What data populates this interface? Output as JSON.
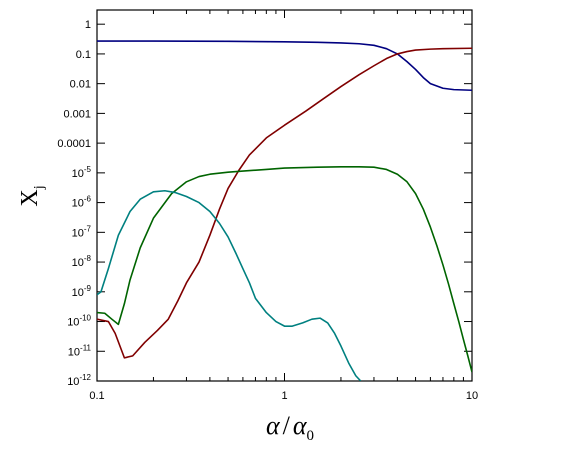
{
  "chart_data": {
    "type": "line",
    "x_scale": "log",
    "y_scale": "log",
    "xlim": [
      0.1,
      10
    ],
    "ylim": [
      1e-12,
      3
    ],
    "xlabel": "α / α₀",
    "xlabel_main": "α",
    "xlabel_slash": "/",
    "xlabel_sub_base": "α",
    "xlabel_sub": "0",
    "ylabel": "Xⱼ",
    "ylabel_main": "X",
    "ylabel_sub": "j",
    "grid": false,
    "x_ticks": [
      {
        "value": 0.1,
        "label": "0.1"
      },
      {
        "value": 1,
        "label": "1"
      },
      {
        "value": 10,
        "label": "10"
      }
    ],
    "y_ticks": [
      {
        "value": 1,
        "label": "1"
      },
      {
        "value": 0.1,
        "label": "0.1"
      },
      {
        "value": 0.01,
        "label": "0.01"
      },
      {
        "value": 0.001,
        "label": "0.001"
      },
      {
        "value": 0.0001,
        "label": "0.0001"
      },
      {
        "value": 1e-05,
        "base": "10",
        "exp": "-5"
      },
      {
        "value": 1e-06,
        "base": "10",
        "exp": "-6"
      },
      {
        "value": 1e-07,
        "base": "10",
        "exp": "-7"
      },
      {
        "value": 1e-08,
        "base": "10",
        "exp": "-8"
      },
      {
        "value": 1e-09,
        "base": "10",
        "exp": "-9"
      },
      {
        "value": 1e-10,
        "base": "10",
        "exp": "-10"
      },
      {
        "value": 1e-11,
        "base": "10",
        "exp": "-11"
      },
      {
        "value": 1e-12,
        "base": "10",
        "exp": "-12"
      }
    ],
    "series": [
      {
        "color": "#000080",
        "points": [
          [
            0.1,
            0.27
          ],
          [
            0.2,
            0.27
          ],
          [
            0.5,
            0.265
          ],
          [
            1.0,
            0.255
          ],
          [
            1.5,
            0.245
          ],
          [
            2.0,
            0.235
          ],
          [
            2.5,
            0.22
          ],
          [
            3.0,
            0.195
          ],
          [
            3.5,
            0.15
          ],
          [
            4.0,
            0.1
          ],
          [
            4.5,
            0.055
          ],
          [
            5.0,
            0.03
          ],
          [
            5.5,
            0.016
          ],
          [
            6.0,
            0.01
          ],
          [
            7.0,
            0.007
          ],
          [
            8.0,
            0.0063
          ],
          [
            10.0,
            0.006
          ]
        ]
      },
      {
        "color": "#800000",
        "points": [
          [
            0.1,
            1.2e-10
          ],
          [
            0.115,
            1e-10
          ],
          [
            0.125,
            4e-11
          ],
          [
            0.14,
            6e-12
          ],
          [
            0.155,
            7e-12
          ],
          [
            0.18,
            2e-11
          ],
          [
            0.21,
            5e-11
          ],
          [
            0.24,
            1.2e-10
          ],
          [
            0.27,
            5e-10
          ],
          [
            0.3,
            2e-09
          ],
          [
            0.35,
            1e-08
          ],
          [
            0.4,
            8e-08
          ],
          [
            0.45,
            6e-07
          ],
          [
            0.5,
            3e-06
          ],
          [
            0.57,
            1.2e-05
          ],
          [
            0.65,
            4e-05
          ],
          [
            0.8,
            0.00015
          ],
          [
            1.0,
            0.0004
          ],
          [
            1.3,
            0.0012
          ],
          [
            1.6,
            0.003
          ],
          [
            2.0,
            0.008
          ],
          [
            2.5,
            0.02
          ],
          [
            3.0,
            0.04
          ],
          [
            3.5,
            0.07
          ],
          [
            4.0,
            0.1
          ],
          [
            4.5,
            0.12
          ],
          [
            5.0,
            0.135
          ],
          [
            6.0,
            0.145
          ],
          [
            7.0,
            0.15
          ],
          [
            10.0,
            0.155
          ]
        ]
      },
      {
        "color": "#006400",
        "points": [
          [
            0.1,
            2e-10
          ],
          [
            0.11,
            1.9e-10
          ],
          [
            0.12,
            1.2e-10
          ],
          [
            0.13,
            8e-11
          ],
          [
            0.14,
            4e-10
          ],
          [
            0.15,
            2.5e-09
          ],
          [
            0.17,
            3e-08
          ],
          [
            0.2,
            3e-07
          ],
          [
            0.25,
            2e-06
          ],
          [
            0.3,
            5e-06
          ],
          [
            0.35,
            7.5e-06
          ],
          [
            0.4,
            9e-06
          ],
          [
            0.5,
            1.05e-05
          ],
          [
            0.6,
            1.15e-05
          ],
          [
            0.8,
            1.3e-05
          ],
          [
            1.0,
            1.45e-05
          ],
          [
            1.5,
            1.55e-05
          ],
          [
            2.0,
            1.6e-05
          ],
          [
            2.5,
            1.6e-05
          ],
          [
            3.0,
            1.55e-05
          ],
          [
            3.5,
            1.3e-05
          ],
          [
            4.0,
            9e-06
          ],
          [
            4.5,
            5e-06
          ],
          [
            5.0,
            2e-06
          ],
          [
            5.5,
            6e-07
          ],
          [
            6.0,
            1.5e-07
          ],
          [
            6.5,
            3.5e-08
          ],
          [
            7.0,
            8e-09
          ],
          [
            7.5,
            1.8e-09
          ],
          [
            8.0,
            4e-10
          ],
          [
            8.5,
            1e-10
          ],
          [
            9.0,
            2.5e-11
          ],
          [
            9.5,
            7e-12
          ],
          [
            10.0,
            2e-12
          ]
        ]
      },
      {
        "color": "#008080",
        "points": [
          [
            0.1,
            8e-10
          ],
          [
            0.105,
            1e-09
          ],
          [
            0.115,
            6e-09
          ],
          [
            0.13,
            8e-08
          ],
          [
            0.15,
            5e-07
          ],
          [
            0.17,
            1.3e-06
          ],
          [
            0.2,
            2.3e-06
          ],
          [
            0.23,
            2.5e-06
          ],
          [
            0.26,
            2.2e-06
          ],
          [
            0.3,
            1.6e-06
          ],
          [
            0.35,
            1e-06
          ],
          [
            0.4,
            5e-07
          ],
          [
            0.45,
            2e-07
          ],
          [
            0.5,
            7e-08
          ],
          [
            0.55,
            2e-08
          ],
          [
            0.6,
            6e-09
          ],
          [
            0.65,
            2e-09
          ],
          [
            0.7,
            6e-10
          ],
          [
            0.8,
            2e-10
          ],
          [
            0.9,
            1e-10
          ],
          [
            1.0,
            7e-11
          ],
          [
            1.1,
            7e-11
          ],
          [
            1.25,
            9e-11
          ],
          [
            1.4,
            1.2e-10
          ],
          [
            1.55,
            1.3e-10
          ],
          [
            1.7,
            9e-11
          ],
          [
            1.85,
            4e-11
          ],
          [
            2.0,
            1.5e-11
          ],
          [
            2.2,
            4e-12
          ],
          [
            2.4,
            1.5e-12
          ],
          [
            2.55,
            1e-12
          ]
        ]
      }
    ]
  }
}
